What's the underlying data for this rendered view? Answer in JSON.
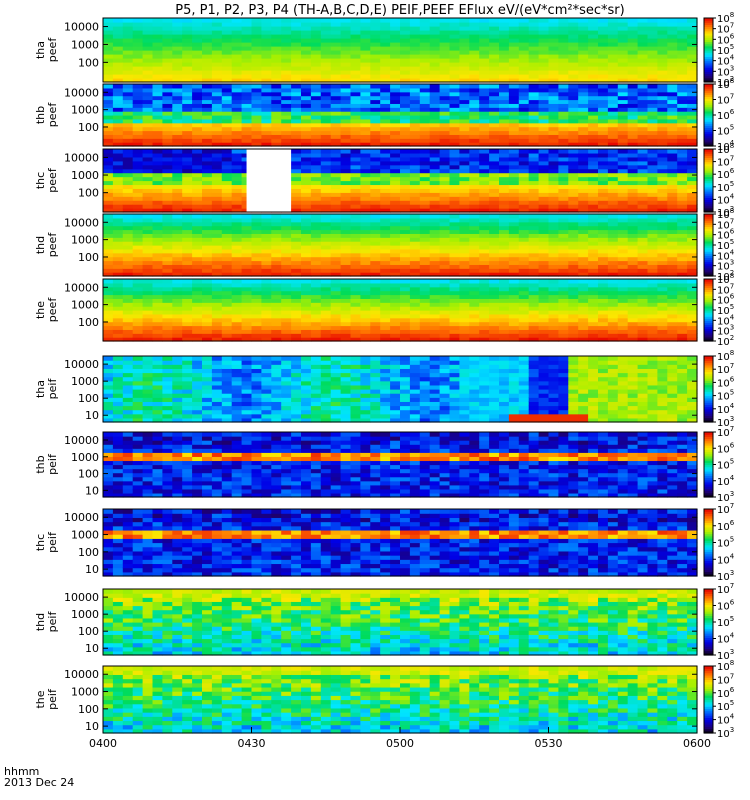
{
  "chart_data": {
    "type": "heatmap",
    "title": "P5, P1, P2, P3, P4 (TH-A,B,C,D,E) PEIF,PEEF EFlux eV/(eV*cm²*sec*sr)",
    "x_ticks": [
      "0400",
      "0430",
      "0500",
      "0530",
      "0600"
    ],
    "x_label_top": "hhmm",
    "x_label_bottom": "2013 Dec 24",
    "xlim_minutes": [
      0,
      120
    ],
    "grid": false,
    "panels": [
      {
        "probe": "tha",
        "quantity": "peef",
        "yticks": [
          "10000",
          "1000",
          "100"
        ],
        "ymin": 8,
        "ymax": 30000,
        "cbar_exp_min": 2,
        "cbar_exp_max": 8,
        "kind": "electron",
        "gaps": [],
        "blocks": [
          [
            104,
            1.0
          ],
          [
            113,
            1.0
          ],
          [
            126,
            1.1
          ],
          [
            131,
            1.0
          ],
          [
            140,
            1.0
          ]
        ]
      },
      {
        "probe": "thb",
        "quantity": "peef",
        "yticks": [
          "10000",
          "1000",
          "100"
        ],
        "ymin": 8,
        "ymax": 30000,
        "cbar_exp_min": 4,
        "cbar_exp_max": 8,
        "kind": "electron",
        "gaps": [],
        "blocks": []
      },
      {
        "probe": "thc",
        "quantity": "peef",
        "yticks": [
          "10000",
          "1000",
          "100"
        ],
        "ymin": 8,
        "ymax": 30000,
        "cbar_exp_min": 3,
        "cbar_exp_max": 8,
        "kind": "electron",
        "gaps": [
          [
            29,
            38
          ]
        ],
        "blocks": []
      },
      {
        "probe": "thd",
        "quantity": "peef",
        "yticks": [
          "10000",
          "1000",
          "100"
        ],
        "ymin": 8,
        "ymax": 30000,
        "cbar_exp_min": 2,
        "cbar_exp_max": 8,
        "kind": "electron",
        "gaps": [],
        "blocks": []
      },
      {
        "probe": "the",
        "quantity": "peef",
        "yticks": [
          "10000",
          "1000",
          "100"
        ],
        "ymin": 8,
        "ymax": 30000,
        "cbar_exp_min": 2,
        "cbar_exp_max": 8,
        "kind": "electron",
        "gaps": [],
        "blocks": []
      },
      {
        "probe": "tha",
        "quantity": "peif",
        "yticks": [
          "10000",
          "1000",
          "100",
          "10"
        ],
        "ymin": 4,
        "ymax": 30000,
        "cbar_exp_min": 3,
        "cbar_exp_max": 8,
        "kind": "ion_tha",
        "gaps": [],
        "blocks": []
      },
      {
        "probe": "thb",
        "quantity": "peif",
        "yticks": [
          "10000",
          "1000",
          "100",
          "10"
        ],
        "ymin": 4,
        "ymax": 30000,
        "cbar_exp_min": 3,
        "cbar_exp_max": 7,
        "kind": "ion_band",
        "gaps": [],
        "blocks": []
      },
      {
        "probe": "thc",
        "quantity": "peif",
        "yticks": [
          "10000",
          "1000",
          "100",
          "10"
        ],
        "ymin": 4,
        "ymax": 30000,
        "cbar_exp_min": 3,
        "cbar_exp_max": 7,
        "kind": "ion_band",
        "gaps": [],
        "blocks": []
      },
      {
        "probe": "thd",
        "quantity": "peif",
        "yticks": [
          "10000",
          "1000",
          "100",
          "10"
        ],
        "ymin": 4,
        "ymax": 30000,
        "cbar_exp_min": 3,
        "cbar_exp_max": 7,
        "kind": "ion_quiet",
        "gaps": [],
        "blocks": []
      },
      {
        "probe": "the",
        "quantity": "peif",
        "yticks": [
          "10000",
          "1000",
          "100",
          "10"
        ],
        "ymin": 4,
        "ymax": 30000,
        "cbar_exp_min": 3,
        "cbar_exp_max": 8,
        "kind": "ion_quiet",
        "gaps": [],
        "blocks": []
      }
    ]
  }
}
